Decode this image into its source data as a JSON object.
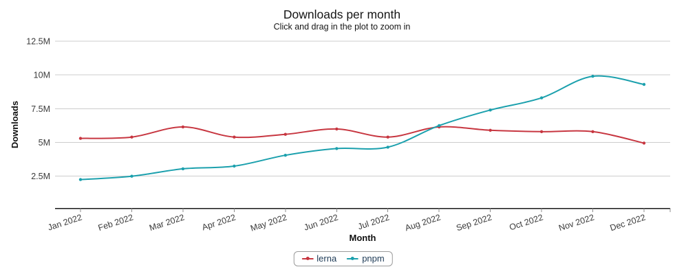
{
  "chart_data": {
    "type": "line",
    "title": "Downloads per month",
    "subtitle": "Click and drag in the plot to zoom in",
    "xlabel": "Month",
    "ylabel": "Downloads",
    "unit": "millions of downloads per month",
    "categories": [
      "Jan 2022",
      "Feb 2022",
      "Mar 2022",
      "Apr 2022",
      "May 2022",
      "Jun 2022",
      "Jul 2022",
      "Aug 2022",
      "Sep 2022",
      "Oct 2022",
      "Nov 2022",
      "Dec 2022"
    ],
    "series": [
      {
        "name": "lerna",
        "color": "#c73640",
        "values": [
          5.3,
          5.4,
          6.15,
          5.4,
          5.6,
          6.0,
          5.4,
          6.15,
          5.9,
          5.8,
          5.8,
          4.95
        ]
      },
      {
        "name": "pnpm",
        "color": "#1ba0ad",
        "values": [
          2.25,
          2.5,
          3.05,
          3.25,
          4.05,
          4.55,
          4.65,
          6.25,
          7.4,
          8.3,
          9.9,
          9.3
        ]
      }
    ],
    "yticks": [
      {
        "value": 2.5,
        "label": "2.5M"
      },
      {
        "value": 5,
        "label": "5M"
      },
      {
        "value": 7.5,
        "label": "7.5M"
      },
      {
        "value": 10,
        "label": "10M"
      },
      {
        "value": 12.5,
        "label": "12.5M"
      }
    ],
    "ylim": [
      0,
      12.5
    ],
    "grid": true,
    "legend_position": "bottom-center",
    "line_style": "spline-with-point-markers"
  }
}
